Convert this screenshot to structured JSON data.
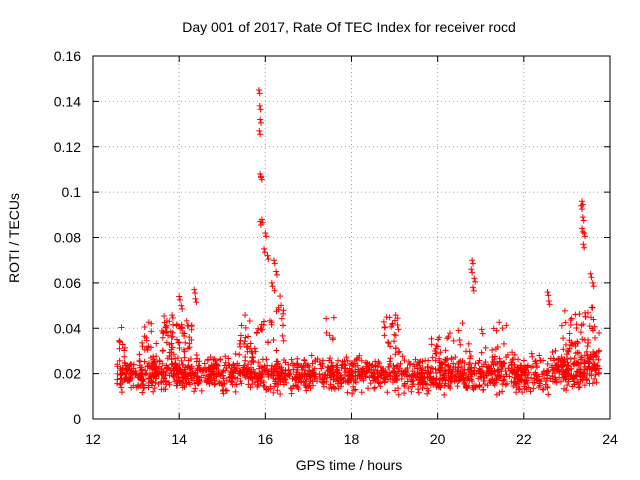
{
  "chart_data": {
    "type": "scatter",
    "title": "Day 001 of 2017, Rate Of TEC Index for receiver rocd",
    "xlabel": "GPS time / hours",
    "ylabel": "ROTI / TECUs",
    "xlim": [
      12,
      24
    ],
    "ylim": [
      0,
      0.16
    ],
    "x_ticks": [
      12,
      14,
      16,
      18,
      20,
      22,
      24
    ],
    "y_ticks": [
      0,
      0.02,
      0.04,
      0.06,
      0.08,
      0.1,
      0.12,
      0.14,
      0.16
    ],
    "x_tick_labels": [
      "12",
      "14",
      "16",
      "18",
      "20",
      "22",
      "24"
    ],
    "y_tick_labels": [
      "0",
      "0.02",
      "0.04",
      "0.06",
      "0.08",
      "0.1",
      "0.12",
      "0.14",
      "0.16"
    ],
    "grid": true,
    "marker": "+",
    "marker_color": "#ff0000",
    "series": [
      {
        "name": "ROTI",
        "x_range": [
          12.55,
          23.75
        ],
        "baseline_band": [
          0.005,
          0.035
        ],
        "notable_points": [
          {
            "x": 15.85,
            "y": 0.145
          },
          {
            "x": 15.87,
            "y": 0.138
          },
          {
            "x": 15.88,
            "y": 0.132
          },
          {
            "x": 15.86,
            "y": 0.127
          },
          {
            "x": 15.88,
            "y": 0.108
          },
          {
            "x": 15.9,
            "y": 0.107
          },
          {
            "x": 15.92,
            "y": 0.088
          },
          {
            "x": 15.88,
            "y": 0.087
          },
          {
            "x": 16.0,
            "y": 0.082
          },
          {
            "x": 15.97,
            "y": 0.075
          },
          {
            "x": 16.05,
            "y": 0.072
          },
          {
            "x": 16.2,
            "y": 0.07
          },
          {
            "x": 16.25,
            "y": 0.065
          },
          {
            "x": 16.15,
            "y": 0.06
          },
          {
            "x": 23.35,
            "y": 0.096
          },
          {
            "x": 23.33,
            "y": 0.094
          },
          {
            "x": 23.37,
            "y": 0.089
          },
          {
            "x": 23.35,
            "y": 0.084
          },
          {
            "x": 23.4,
            "y": 0.082
          },
          {
            "x": 23.38,
            "y": 0.077
          },
          {
            "x": 23.55,
            "y": 0.064
          },
          {
            "x": 23.6,
            "y": 0.06
          },
          {
            "x": 20.8,
            "y": 0.07
          },
          {
            "x": 20.78,
            "y": 0.066
          },
          {
            "x": 20.85,
            "y": 0.062
          },
          {
            "x": 20.82,
            "y": 0.058
          },
          {
            "x": 22.55,
            "y": 0.056
          },
          {
            "x": 22.58,
            "y": 0.052
          },
          {
            "x": 14.35,
            "y": 0.057
          },
          {
            "x": 14.38,
            "y": 0.053
          },
          {
            "x": 14.0,
            "y": 0.054
          },
          {
            "x": 14.05,
            "y": 0.05
          }
        ],
        "moderate_clusters": [
          {
            "x_center": 13.95,
            "spread": 0.35,
            "y_low": 0.028,
            "y_high": 0.046,
            "count": 60
          },
          {
            "x_center": 12.7,
            "spread": 0.1,
            "y_low": 0.03,
            "y_high": 0.041,
            "count": 8
          },
          {
            "x_center": 13.3,
            "spread": 0.2,
            "y_low": 0.03,
            "y_high": 0.044,
            "count": 15
          },
          {
            "x_center": 15.7,
            "spread": 0.3,
            "y_low": 0.028,
            "y_high": 0.046,
            "count": 30
          },
          {
            "x_center": 16.25,
            "spread": 0.2,
            "y_low": 0.03,
            "y_high": 0.06,
            "count": 20
          },
          {
            "x_center": 17.5,
            "spread": 0.1,
            "y_low": 0.035,
            "y_high": 0.045,
            "count": 6
          },
          {
            "x_center": 18.95,
            "spread": 0.2,
            "y_low": 0.028,
            "y_high": 0.046,
            "count": 25
          },
          {
            "x_center": 20.3,
            "spread": 0.5,
            "y_low": 0.026,
            "y_high": 0.044,
            "count": 25
          },
          {
            "x_center": 21.5,
            "spread": 0.5,
            "y_low": 0.026,
            "y_high": 0.043,
            "count": 18
          },
          {
            "x_center": 23.3,
            "spread": 0.45,
            "y_low": 0.026,
            "y_high": 0.05,
            "count": 60
          }
        ]
      }
    ]
  }
}
